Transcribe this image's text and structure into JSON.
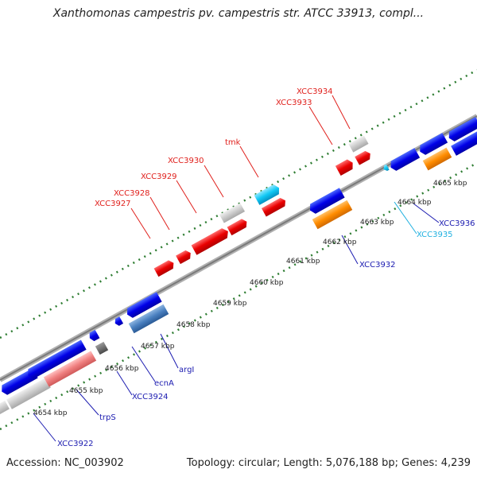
{
  "title": "Xanthomonas campestris pv. campestris str. ATCC 33913, compl...",
  "footer": {
    "accession": "Accession: NC_003902",
    "topology": "Topology: circular; Length: 5,076,188 bp; Genes: 4,239"
  },
  "colors": {
    "backbone": "#8c8c8c",
    "tick_dots": "#2e7d32",
    "forward_label": "#e0201c",
    "reverse_label": "#1a1ab0",
    "cyan_label": "#20b0e0"
  },
  "ruler_labels": [
    "4654 kbp",
    "4655 kbp",
    "4656 kbp",
    "4657 kbp",
    "4658 kbp",
    "4659 kbp",
    "4660 kbp",
    "4661 kbp",
    "4662 kbp",
    "4663 kbp",
    "4664 kbp",
    "4665 kbp"
  ],
  "forward_gene_labels": [
    "XCC3927",
    "XCC3928",
    "XCC3929",
    "XCC3930",
    "tmk",
    "XCC3933",
    "XCC3934"
  ],
  "reverse_gene_labels": [
    "XCC3922",
    "trpS",
    "XCC3924",
    "ecnA",
    "argI",
    "XCC3932",
    "XCC3935",
    "XCC3936"
  ]
}
